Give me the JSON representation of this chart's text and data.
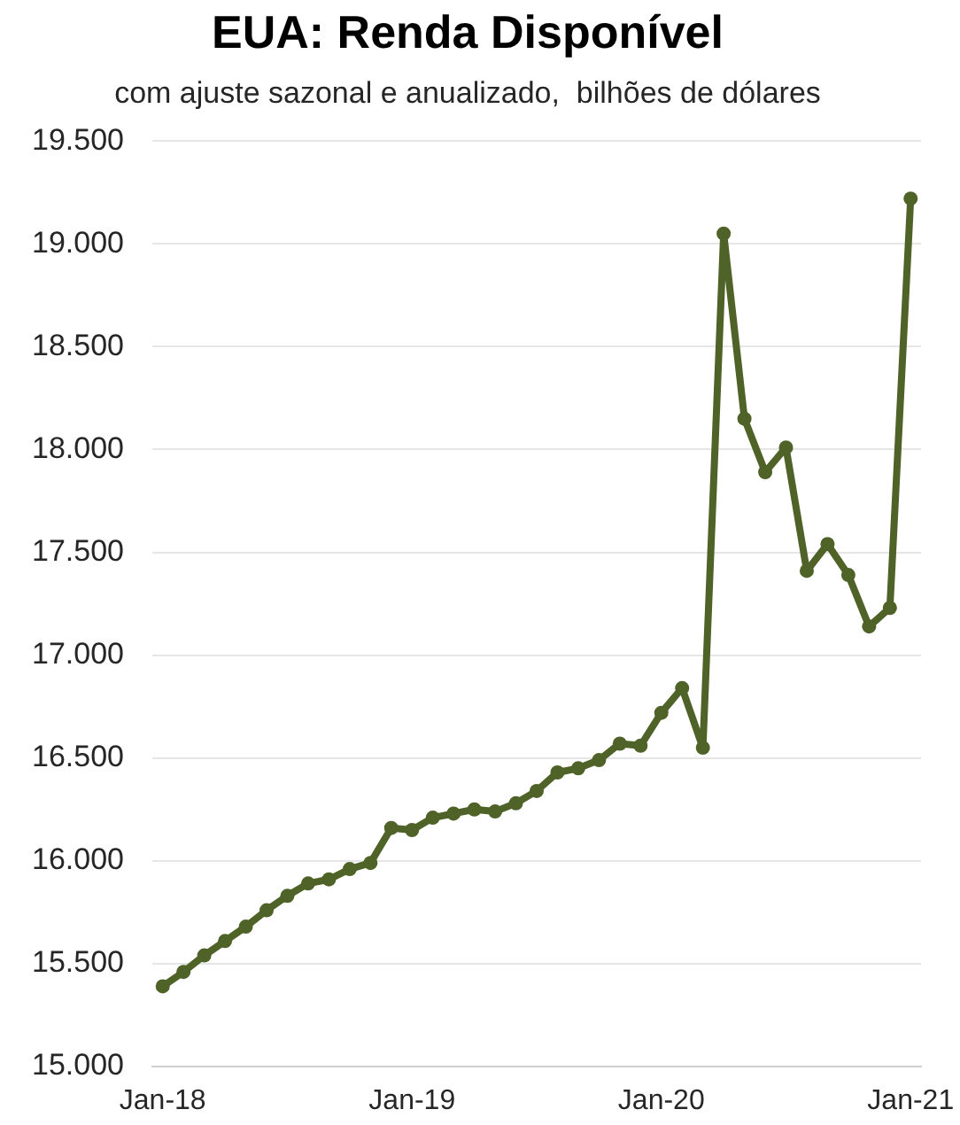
{
  "chart_data": {
    "type": "line",
    "title": "EUA: Renda Disponível",
    "subtitle": "com ajuste sazonal e anualizado,  bilhões de dólares",
    "categories": [
      "Jan-18",
      null,
      null,
      null,
      null,
      null,
      null,
      null,
      null,
      null,
      null,
      null,
      "Jan-19",
      null,
      null,
      null,
      null,
      null,
      null,
      null,
      null,
      null,
      null,
      null,
      "Jan-20",
      null,
      null,
      null,
      null,
      null,
      null,
      null,
      null,
      null,
      null,
      null,
      "Jan-21"
    ],
    "series": [
      {
        "color": "#4f6228",
        "values": [
          15390,
          15460,
          15540,
          15610,
          15680,
          15760,
          15830,
          15890,
          15910,
          15960,
          15990,
          16160,
          16150,
          16210,
          16230,
          16250,
          16240,
          16280,
          16340,
          16430,
          16450,
          16490,
          16570,
          16560,
          16720,
          16840,
          16550,
          19050,
          18150,
          17890,
          18010,
          17410,
          17540,
          17390,
          17140,
          17230,
          19220
        ]
      }
    ],
    "ylim": [
      15000,
      19500
    ],
    "yticks": [
      {
        "value": 15000,
        "label": "15.000"
      },
      {
        "value": 15500,
        "label": "15.500"
      },
      {
        "value": 16000,
        "label": "16.000"
      },
      {
        "value": 16500,
        "label": "16.500"
      },
      {
        "value": 17000,
        "label": "17.000"
      },
      {
        "value": 17500,
        "label": "17.500"
      },
      {
        "value": 18000,
        "label": "18.000"
      },
      {
        "value": 18500,
        "label": "18.500"
      },
      {
        "value": 19000,
        "label": "19.000"
      },
      {
        "value": 19500,
        "label": "19.500"
      }
    ],
    "grid": "y",
    "marker": "circle"
  }
}
